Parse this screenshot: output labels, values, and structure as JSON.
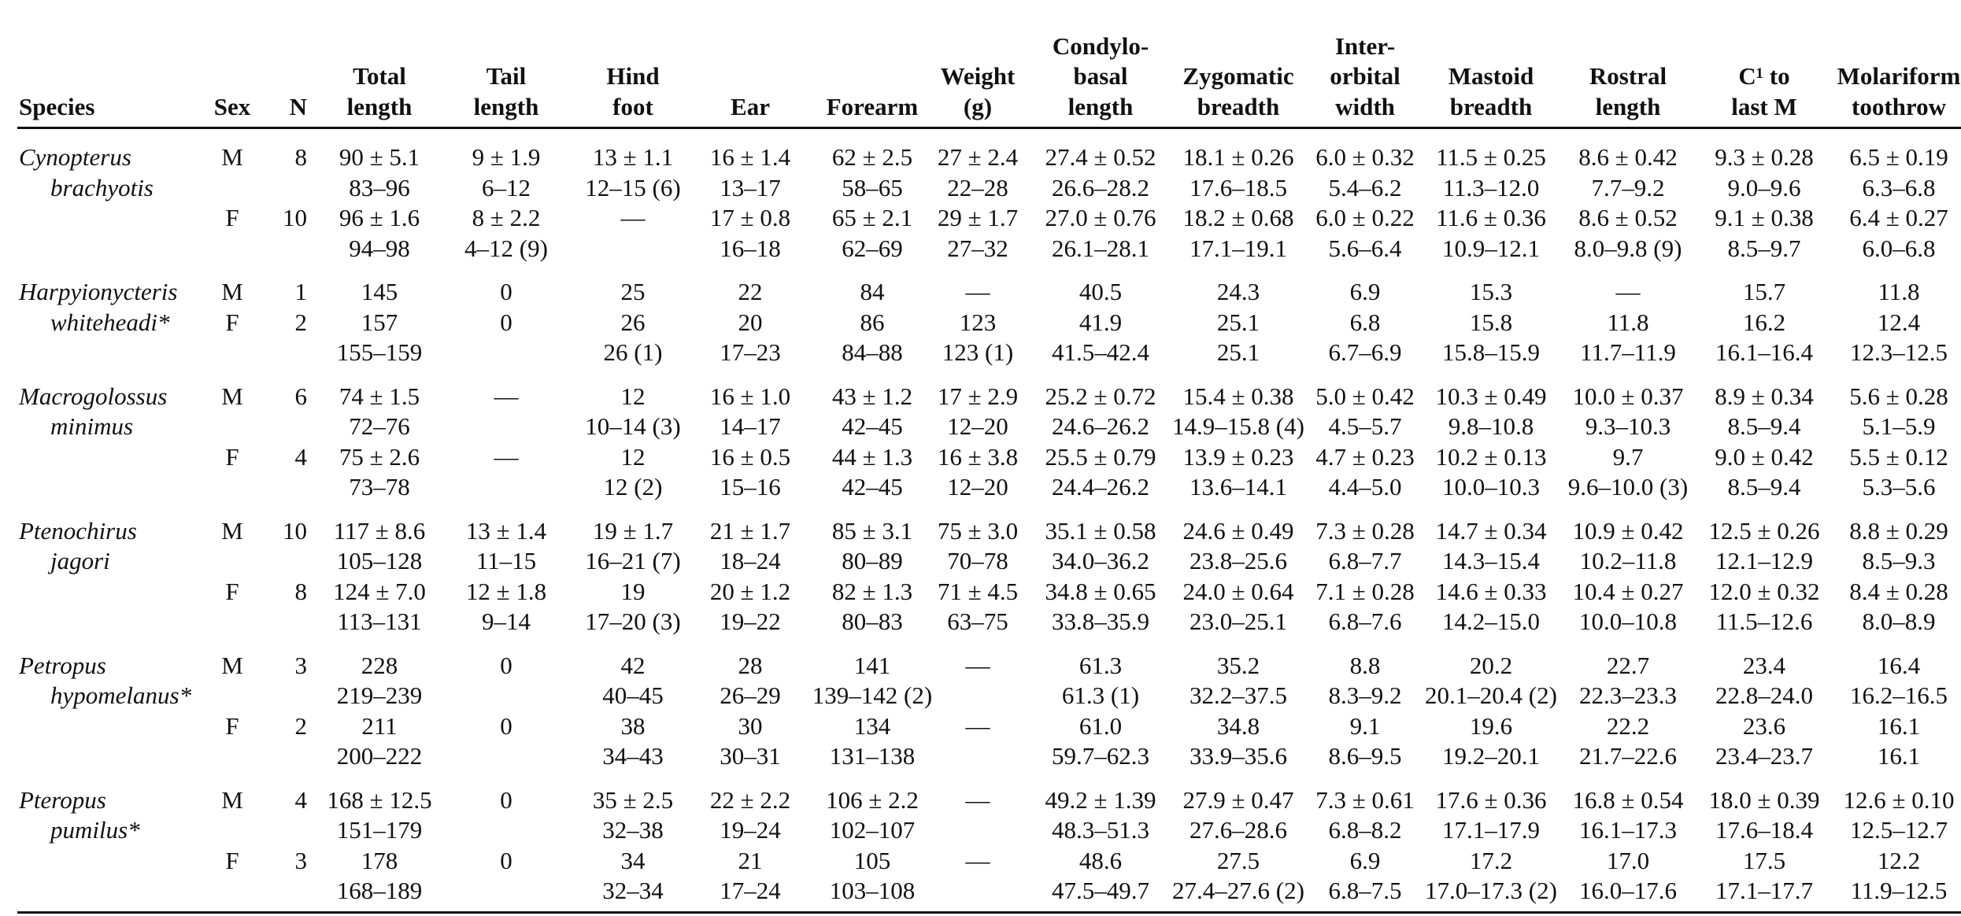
{
  "headers": [
    [
      "Species"
    ],
    [
      "Sex"
    ],
    [
      "N"
    ],
    [
      "Total",
      "length"
    ],
    [
      "Tail",
      "length"
    ],
    [
      "Hind",
      "foot"
    ],
    [
      "Ear"
    ],
    [
      "Forearm"
    ],
    [
      "Weight",
      "(g)"
    ],
    [
      "Condylo-",
      "basal",
      "length"
    ],
    [
      "Zygomatic",
      "breadth"
    ],
    [
      "Inter-",
      "orbital",
      "width"
    ],
    [
      "Mastoid",
      "breadth"
    ],
    [
      "Rostral",
      "length"
    ],
    [
      "C¹ to",
      "last M"
    ],
    [
      "Molariform",
      "toothrow"
    ]
  ],
  "species": [
    {
      "name": [
        "Cynopterus",
        "brachyotis"
      ],
      "entries": [
        {
          "sex": "M",
          "n": "8",
          "mean": [
            "90 ± 5.1",
            "9 ± 1.9",
            "13 ± 1.1",
            "16 ± 1.4",
            "62 ± 2.5",
            "27 ± 2.4",
            "27.4 ± 0.52",
            "18.1 ± 0.26",
            "6.0 ± 0.32",
            "11.5 ± 0.25",
            "8.6 ± 0.42",
            "9.3 ± 0.28",
            "6.5 ± 0.19"
          ],
          "range": [
            "83–96",
            "6–12",
            "12–15 (6)",
            "13–17",
            "58–65",
            "22–28",
            "26.6–28.2",
            "17.6–18.5",
            "5.4–6.2",
            "11.3–12.0",
            "7.7–9.2",
            "9.0–9.6",
            "6.3–6.8"
          ]
        },
        {
          "sex": "F",
          "n": "10",
          "mean": [
            "96 ± 1.6",
            "8 ± 2.2",
            "—",
            "17 ± 0.8",
            "65 ± 2.1",
            "29 ± 1.7",
            "27.0 ± 0.76",
            "18.2 ± 0.68",
            "6.0 ± 0.22",
            "11.6 ± 0.36",
            "8.6 ± 0.52",
            "9.1 ± 0.38",
            "6.4 ± 0.27"
          ],
          "range": [
            "94–98",
            "4–12 (9)",
            "",
            "16–18",
            "62–69",
            "27–32",
            "26.1–28.1",
            "17.1–19.1",
            "5.6–6.4",
            "10.9–12.1",
            "8.0–9.8 (9)",
            "8.5–9.7",
            "6.0–6.8"
          ]
        }
      ]
    },
    {
      "name": [
        "Harpyionycteris",
        "whiteheadi*"
      ],
      "entries": [
        {
          "sex": "M",
          "n": "1",
          "mean": [
            "145",
            "0",
            "25",
            "22",
            "84",
            "—",
            "40.5",
            "24.3",
            "6.9",
            "15.3",
            "—",
            "15.7",
            "11.8"
          ],
          "range": null
        },
        {
          "sex": "F",
          "n": "2",
          "mean": [
            "157",
            "0",
            "26",
            "20",
            "86",
            "123",
            "41.9",
            "25.1",
            "6.8",
            "15.8",
            "11.8",
            "16.2",
            "12.4"
          ],
          "range": [
            "155–159",
            "",
            "26 (1)",
            "17–23",
            "84–88",
            "123 (1)",
            "41.5–42.4",
            "25.1",
            "6.7–6.9",
            "15.8–15.9",
            "11.7–11.9",
            "16.1–16.4",
            "12.3–12.5"
          ]
        }
      ]
    },
    {
      "name": [
        "Macrogolossus",
        "minimus"
      ],
      "entries": [
        {
          "sex": "M",
          "n": "6",
          "mean": [
            "74 ± 1.5",
            "—",
            "12",
            "16 ± 1.0",
            "43 ± 1.2",
            "17 ± 2.9",
            "25.2 ± 0.72",
            "15.4 ± 0.38",
            "5.0 ± 0.42",
            "10.3 ± 0.49",
            "10.0 ± 0.37",
            "8.9 ± 0.34",
            "5.6 ± 0.28"
          ],
          "range": [
            "72–76",
            "",
            "10–14 (3)",
            "14–17",
            "42–45",
            "12–20",
            "24.6–26.2",
            "14.9–15.8 (4)",
            "4.5–5.7",
            "9.8–10.8",
            "9.3–10.3",
            "8.5–9.4",
            "5.1–5.9"
          ]
        },
        {
          "sex": "F",
          "n": "4",
          "mean": [
            "75 ± 2.6",
            "—",
            "12",
            "16 ± 0.5",
            "44 ± 1.3",
            "16 ± 3.8",
            "25.5 ± 0.79",
            "13.9 ± 0.23",
            "4.7 ± 0.23",
            "10.2 ± 0.13",
            "9.7",
            "9.0 ± 0.42",
            "5.5 ± 0.12"
          ],
          "range": [
            "73–78",
            "",
            "12 (2)",
            "15–16",
            "42–45",
            "12–20",
            "24.4–26.2",
            "13.6–14.1",
            "4.4–5.0",
            "10.0–10.3",
            "9.6–10.0 (3)",
            "8.5–9.4",
            "5.3–5.6"
          ]
        }
      ]
    },
    {
      "name": [
        "Ptenochirus",
        "jagori"
      ],
      "entries": [
        {
          "sex": "M",
          "n": "10",
          "mean": [
            "117 ± 8.6",
            "13 ± 1.4",
            "19 ± 1.7",
            "21 ± 1.7",
            "85 ± 3.1",
            "75 ± 3.0",
            "35.1 ± 0.58",
            "24.6 ± 0.49",
            "7.3 ± 0.28",
            "14.7 ± 0.34",
            "10.9 ± 0.42",
            "12.5 ± 0.26",
            "8.8 ± 0.29"
          ],
          "range": [
            "105–128",
            "11–15",
            "16–21 (7)",
            "18–24",
            "80–89",
            "70–78",
            "34.0–36.2",
            "23.8–25.6",
            "6.8–7.7",
            "14.3–15.4",
            "10.2–11.8",
            "12.1–12.9",
            "8.5–9.3"
          ]
        },
        {
          "sex": "F",
          "n": "8",
          "mean": [
            "124 ± 7.0",
            "12 ± 1.8",
            "19",
            "20 ± 1.2",
            "82 ± 1.3",
            "71 ± 4.5",
            "34.8 ± 0.65",
            "24.0 ± 0.64",
            "7.1 ± 0.28",
            "14.6 ± 0.33",
            "10.4 ± 0.27",
            "12.0 ± 0.32",
            "8.4 ± 0.28"
          ],
          "range": [
            "113–131",
            "9–14",
            "17–20 (3)",
            "19–22",
            "80–83",
            "63–75",
            "33.8–35.9",
            "23.0–25.1",
            "6.8–7.6",
            "14.2–15.0",
            "10.0–10.8",
            "11.5–12.6",
            "8.0–8.9"
          ]
        }
      ]
    },
    {
      "name": [
        "Petropus",
        "hypomelanus*"
      ],
      "entries": [
        {
          "sex": "M",
          "n": "3",
          "mean": [
            "228",
            "0",
            "42",
            "28",
            "141",
            "—",
            "61.3",
            "35.2",
            "8.8",
            "20.2",
            "22.7",
            "23.4",
            "16.4"
          ],
          "range": [
            "219–239",
            "",
            "40–45",
            "26–29",
            "139–142 (2)",
            "",
            "61.3 (1)",
            "32.2–37.5",
            "8.3–9.2",
            "20.1–20.4 (2)",
            "22.3–23.3",
            "22.8–24.0",
            "16.2–16.5"
          ]
        },
        {
          "sex": "F",
          "n": "2",
          "mean": [
            "211",
            "0",
            "38",
            "30",
            "134",
            "—",
            "61.0",
            "34.8",
            "9.1",
            "19.6",
            "22.2",
            "23.6",
            "16.1"
          ],
          "range": [
            "200–222",
            "",
            "34–43",
            "30–31",
            "131–138",
            "",
            "59.7–62.3",
            "33.9–35.6",
            "8.6–9.5",
            "19.2–20.1",
            "21.7–22.6",
            "23.4–23.7",
            "16.1"
          ]
        }
      ]
    },
    {
      "name": [
        "Pteropus",
        "pumilus*"
      ],
      "entries": [
        {
          "sex": "M",
          "n": "4",
          "mean": [
            "168 ± 12.5",
            "0",
            "35 ± 2.5",
            "22 ± 2.2",
            "106 ± 2.2",
            "—",
            "49.2 ± 1.39",
            "27.9 ± 0.47",
            "7.3 ± 0.61",
            "17.6 ± 0.36",
            "16.8 ± 0.54",
            "18.0 ± 0.39",
            "12.6 ± 0.10"
          ],
          "range": [
            "151–179",
            "",
            "32–38",
            "19–24",
            "102–107",
            "",
            "48.3–51.3",
            "27.6–28.6",
            "6.8–8.2",
            "17.1–17.9",
            "16.1–17.3",
            "17.6–18.4",
            "12.5–12.7"
          ]
        },
        {
          "sex": "F",
          "n": "3",
          "mean": [
            "178",
            "0",
            "34",
            "21",
            "105",
            "—",
            "48.6",
            "27.5",
            "6.9",
            "17.2",
            "17.0",
            "17.5",
            "12.2"
          ],
          "range": [
            "168–189",
            "",
            "32–34",
            "17–24",
            "103–108",
            "",
            "47.5–49.7",
            "27.4–27.6 (2)",
            "6.8–7.5",
            "17.0–17.3 (2)",
            "16.0–17.6",
            "17.1–17.7",
            "11.9–12.5"
          ]
        }
      ]
    }
  ]
}
